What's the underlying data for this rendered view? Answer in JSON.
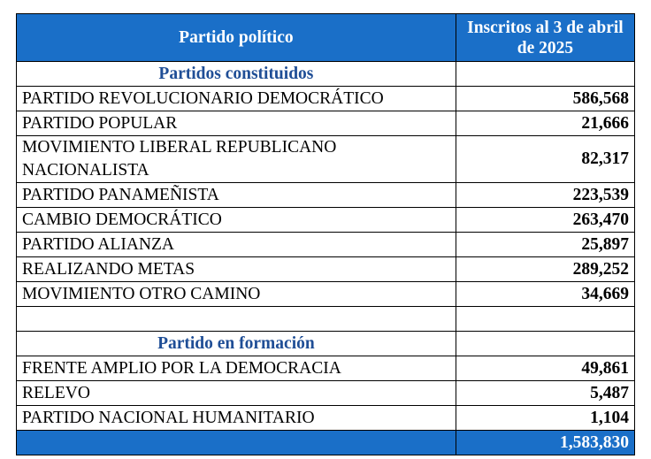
{
  "header": {
    "columns": [
      "Partido político",
      "Inscritos al 3 de abril de 2025"
    ]
  },
  "sections": [
    {
      "title": "Partidos constituidos",
      "rows": [
        [
          "PARTIDO REVOLUCIONARIO DEMOCRÁTICO",
          "586,568"
        ],
        [
          "PARTIDO POPULAR",
          "21,666"
        ],
        [
          "MOVIMIENTO LIBERAL REPUBLICANO NACIONALISTA",
          "82,317"
        ],
        [
          "PARTIDO PANAMEÑISTA",
          "223,539"
        ],
        [
          "CAMBIO DEMOCRÁTICO",
          "263,470"
        ],
        [
          "PARTIDO ALIANZA",
          "25,897"
        ],
        [
          "REALIZANDO METAS",
          "289,252"
        ],
        [
          "MOVIMIENTO OTRO CAMINO",
          "34,669"
        ]
      ]
    },
    {
      "title": "Partido en formación",
      "rows": [
        [
          "FRENTE AMPLIO POR LA DEMOCRACIA",
          "49,861"
        ],
        [
          "RELEVO",
          "5,487"
        ],
        [
          "PARTIDO NACIONAL HUMANITARIO",
          "1,104"
        ]
      ]
    }
  ],
  "total": "1,583,830"
}
